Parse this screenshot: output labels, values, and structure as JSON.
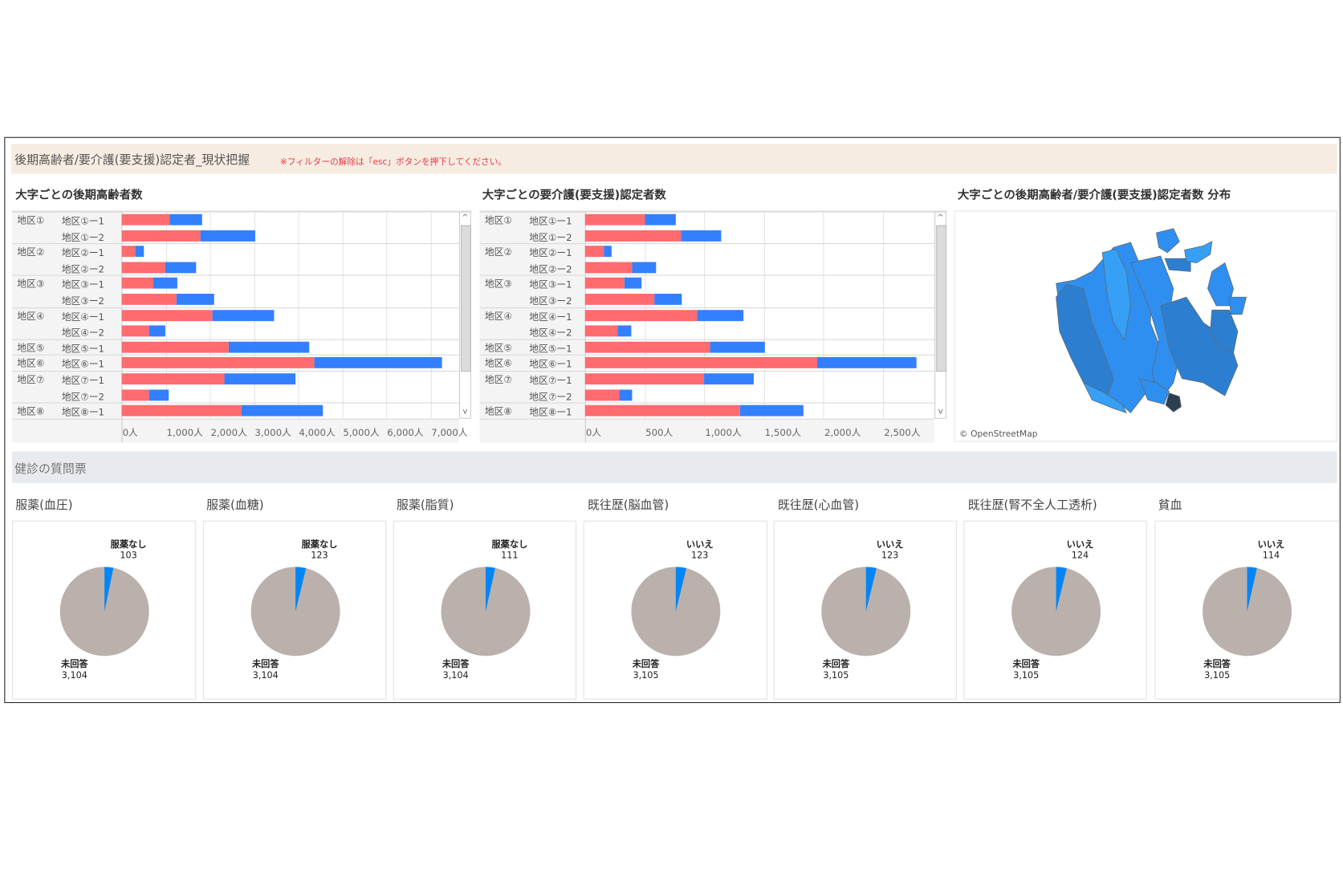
{
  "header": {
    "title": "後期高齢者/要介護(要支援)認定者_現状把握",
    "note": "※フィルターの解除は「esc」ボタンを押下してください。"
  },
  "colors": {
    "series1": "#ff6b6e",
    "series2": "#3380ff",
    "pie_main": "#bab0ac",
    "pie_slice": "#0085f5",
    "header_bg": "#f6ece2",
    "section_bg": "#e7ebef"
  },
  "chart_data": [
    {
      "type": "bar",
      "stacked": true,
      "orientation": "horizontal",
      "title": "大字ごとの後期高齢者数",
      "groups": [
        "地区①",
        "地区①",
        "地区②",
        "地区②",
        "地区③",
        "地区③",
        "地区④",
        "地区④",
        "地区⑤",
        "地区⑥",
        "地区⑦",
        "地区⑦",
        "地区⑧"
      ],
      "categories": [
        "地区①ー1",
        "地区①ー2",
        "地区②ー1",
        "地区②ー2",
        "地区③ー1",
        "地区③ー2",
        "地区④ー1",
        "地区④ー2",
        "地区⑤ー1",
        "地区⑥ー1",
        "地区⑦ー1",
        "地区⑦ー2",
        "地区⑧ー1"
      ],
      "series": [
        {
          "color": "#ff6b6e",
          "values": [
            1080,
            1780,
            310,
            990,
            710,
            1240,
            2060,
            620,
            2430,
            4370,
            2330,
            620,
            2720
          ]
        },
        {
          "color": "#3380ff",
          "values": [
            740,
            1240,
            190,
            690,
            550,
            860,
            1400,
            380,
            1830,
            2900,
            1610,
            440,
            1840
          ]
        }
      ],
      "xticks": [
        "0人",
        "1,000人",
        "2,000人",
        "3,000人",
        "4,000人",
        "5,000人",
        "6,000人",
        "7,000人"
      ],
      "xtick_values": [
        0,
        1000,
        2000,
        3000,
        4000,
        5000,
        6000,
        7000
      ],
      "xlim": [
        0,
        7650
      ],
      "grid": true
    },
    {
      "type": "bar",
      "stacked": true,
      "orientation": "horizontal",
      "title": "大字ごとの要介護(要支援)認定者数",
      "groups": [
        "地区①",
        "地区①",
        "地区②",
        "地区②",
        "地区③",
        "地区③",
        "地区④",
        "地区④",
        "地区⑤",
        "地区⑥",
        "地区⑦",
        "地区⑦",
        "地区⑧"
      ],
      "categories": [
        "地区①ー1",
        "地区①ー2",
        "地区②ー1",
        "地区②ー2",
        "地区③ー1",
        "地区③ー2",
        "地区④ー1",
        "地区④ー2",
        "地区⑤ー1",
        "地区⑥ー1",
        "地区⑦ー1",
        "地区⑦ー2",
        "地区⑧ー1"
      ],
      "series": [
        {
          "color": "#ff6b6e",
          "values": [
            505,
            807,
            155,
            397,
            330,
            585,
            943,
            276,
            1052,
            1946,
            997,
            284,
            1299
          ]
        },
        {
          "color": "#3380ff",
          "values": [
            255,
            332,
            67,
            201,
            142,
            229,
            384,
            113,
            456,
            830,
            418,
            113,
            533
          ]
        }
      ],
      "xticks": [
        "0人",
        "500人",
        "1,000人",
        "1,500人",
        "2,000人",
        "2,500人"
      ],
      "xtick_values": [
        0,
        500,
        1000,
        1500,
        2000,
        2500
      ],
      "xlim": [
        0,
        2930
      ],
      "grid": true
    }
  ],
  "map": {
    "title": "大字ごとの後期高齢者/要介護(要支援)認定者数 分布",
    "attribution": "© OpenStreetMap"
  },
  "questionnaire": {
    "title": "健診の質問票",
    "pies": [
      {
        "title": "服薬(血圧)",
        "slice_label": "服薬なし",
        "slice_value": 103,
        "slice_text": "103",
        "main_label": "未回答",
        "main_value": 3104,
        "main_text": "3,104"
      },
      {
        "title": "服薬(血糖)",
        "slice_label": "服薬なし",
        "slice_value": 123,
        "slice_text": "123",
        "main_label": "未回答",
        "main_value": 3104,
        "main_text": "3,104"
      },
      {
        "title": "服薬(脂質)",
        "slice_label": "服薬なし",
        "slice_value": 111,
        "slice_text": "111",
        "main_label": "未回答",
        "main_value": 3104,
        "main_text": "3,104"
      },
      {
        "title": "既往歴(脳血管)",
        "slice_label": "いいえ",
        "slice_value": 123,
        "slice_text": "123",
        "main_label": "未回答",
        "main_value": 3105,
        "main_text": "3,105"
      },
      {
        "title": "既往歴(心血管)",
        "slice_label": "いいえ",
        "slice_value": 123,
        "slice_text": "123",
        "main_label": "未回答",
        "main_value": 3105,
        "main_text": "3,105"
      },
      {
        "title": "既往歴(腎不全人工透析)",
        "slice_label": "いいえ",
        "slice_value": 124,
        "slice_text": "124",
        "main_label": "未回答",
        "main_value": 3105,
        "main_text": "3,105"
      },
      {
        "title": "貧血",
        "slice_label": "いいえ",
        "slice_value": 114,
        "slice_text": "114",
        "main_label": "未回答",
        "main_value": 3105,
        "main_text": "3,105"
      }
    ]
  }
}
